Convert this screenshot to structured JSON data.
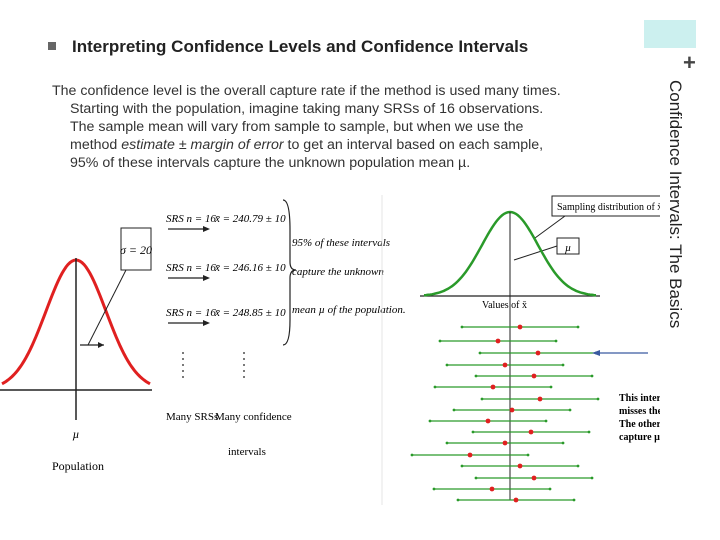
{
  "slide": {
    "section_title": "Confidence Intervals: The Basics",
    "plus_sign": "+",
    "title": "Interpreting Confidence Levels and Confidence Intervals",
    "body": {
      "line1": "The confidence level is the overall capture rate if the method is used many times.",
      "line2": "Starting with the population, imagine taking many SRSs of 16 observations.",
      "line3": "The sample mean will vary from sample to sample, but when we use the",
      "line4_pre": "method ",
      "line4_em": "estimate ± margin of error",
      "line4_post": " to get an interval based on each sample,",
      "line5": "95% of these intervals capture the unknown population mean µ."
    }
  },
  "figure": {
    "sigma_label": "σ = 20",
    "mu_label": "µ",
    "population_label": "Population",
    "srs1": "SRS n = 16",
    "srs2": "SRS n = 16",
    "srs3": "SRS n = 16",
    "xbar1": "x̄ = 240.79 ± 10",
    "xbar2": "x̄ = 246.16 ± 10",
    "xbar3": "x̄ = 248.85 ± 10",
    "brace_line1": "95% of these intervals",
    "brace_line2": "capture the unknown",
    "brace_line3": "mean µ of the population.",
    "many_srss": "Many SRSs",
    "many_ci_line1": "Many confidence",
    "many_ci_line2": "intervals",
    "sampling_dist": "Sampling distribution of x̄",
    "mu_box": "µ",
    "values_axis": "Values of x̄",
    "callout_line1": "This interval",
    "callout_line2": "misses the true µ.",
    "callout_line3": "The others all",
    "callout_line4": "capture µ.",
    "colors": {
      "population_curve": "#e02020",
      "sampling_curve": "#2a9a2a",
      "interval": "#2a9a2a",
      "point": "#e02020",
      "callout_arrow": "#3a5aa0"
    }
  }
}
